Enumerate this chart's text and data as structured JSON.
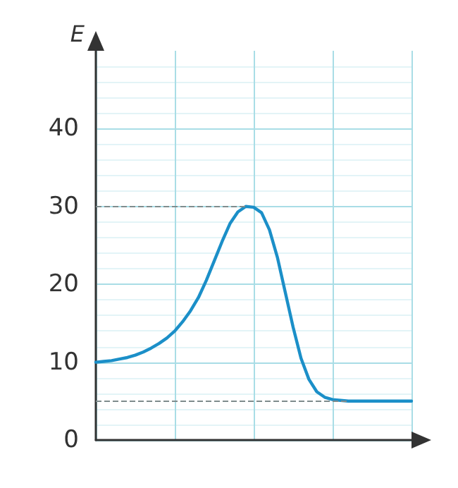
{
  "chart_data": {
    "type": "line",
    "ylabel": "E",
    "categories": [
      null,
      null,
      null,
      null,
      null,
      null,
      null,
      null,
      null,
      null,
      null,
      null,
      null,
      null,
      null,
      null,
      null,
      null,
      null,
      null,
      null,
      null,
      null,
      null,
      null,
      null,
      null,
      null,
      null,
      null,
      null,
      null,
      null,
      null,
      null,
      null,
      null,
      null,
      null,
      null,
      null
    ],
    "series": [
      {
        "color": "#1b8fc8",
        "values": [
          10,
          10.1,
          10.2,
          10.4,
          10.6,
          10.9,
          11.3,
          11.8,
          12.4,
          13.1,
          14,
          15.2,
          16.6,
          18.3,
          20.5,
          23,
          25.5,
          27.8,
          29.3,
          30,
          29.9,
          29.2,
          27,
          23.5,
          19,
          14.5,
          10.5,
          7.8,
          6.2,
          5.5,
          5.2,
          5.1,
          5,
          5,
          5,
          5,
          5,
          5,
          5,
          5,
          5
        ]
      }
    ],
    "ylim": [
      0,
      50
    ],
    "yticks": [
      0,
      10,
      20,
      30,
      40
    ],
    "grid": true,
    "tick_labels": "y",
    "line_style": "solid",
    "ref_lines": [
      {
        "axis": "y",
        "value": 30,
        "color": "#7f8c8d",
        "line_style": "dashed"
      },
      {
        "axis": "y",
        "value": 5,
        "color": "#7f8c8d",
        "line_style": "dashed"
      }
    ]
  }
}
